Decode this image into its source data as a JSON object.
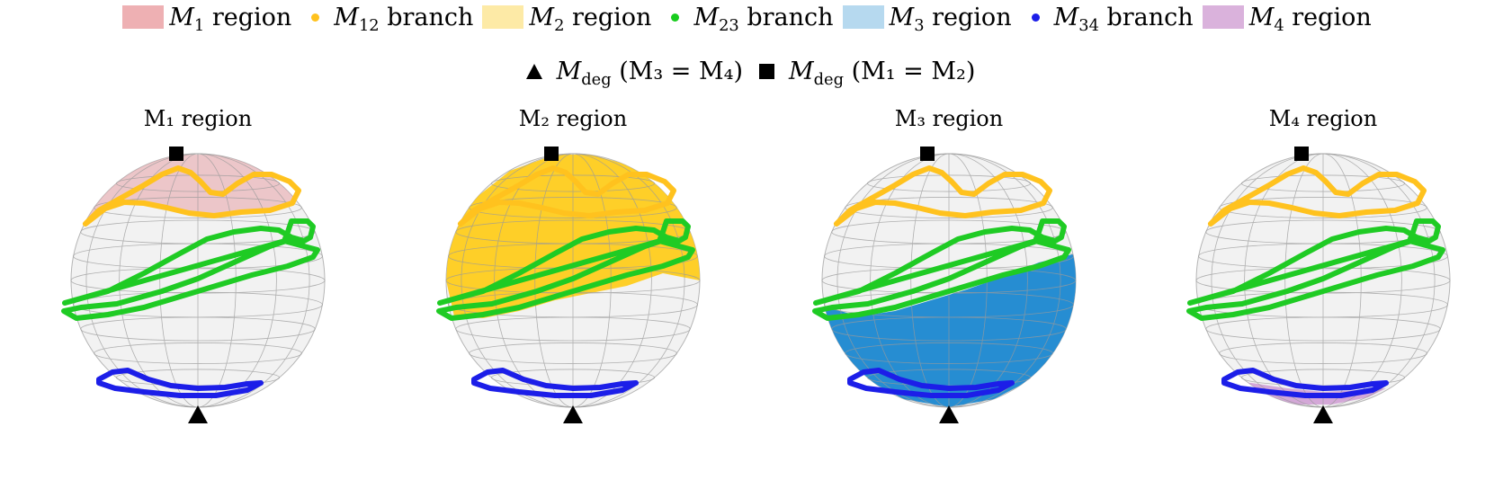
{
  "legend": {
    "row1": [
      {
        "kind": "swatch",
        "color": "#eeb0b3",
        "symbol": "M",
        "sub": "1",
        "text": " region"
      },
      {
        "kind": "dot",
        "color": "#ffc21e",
        "symbol": "M",
        "sub": "12",
        "text": " branch"
      },
      {
        "kind": "swatch",
        "color": "#fdeaa6",
        "symbol": "M",
        "sub": "2",
        "text": " region"
      },
      {
        "kind": "dot",
        "color": "#18cc1e",
        "symbol": "M",
        "sub": "23",
        "text": " branch"
      },
      {
        "kind": "swatch",
        "color": "#b6d9ef",
        "symbol": "M",
        "sub": "3",
        "text": " region"
      },
      {
        "kind": "dot",
        "color": "#1c1ee8",
        "symbol": "M",
        "sub": "34",
        "text": " branch"
      },
      {
        "kind": "swatch",
        "color": "#dab2dc",
        "symbol": "M",
        "sub": "4",
        "text": " region"
      }
    ],
    "row2": [
      {
        "marker": "triangle",
        "symbol": "M",
        "sub": "deg",
        "text": " (M₃ = M₄)"
      },
      {
        "marker": "square",
        "symbol": "M",
        "sub": "deg",
        "text": " (M₁ = M₂)"
      }
    ]
  },
  "panels": [
    {
      "title": "M₁ region",
      "region": "cap",
      "fill": "#e8a3a7",
      "opacity": 0.55
    },
    {
      "title": "M₂ region",
      "region": "upper",
      "fill": "#ffcb12",
      "opacity": 0.9
    },
    {
      "title": "M₃ region",
      "region": "lower",
      "fill": "#1a87d0",
      "opacity": 0.95
    },
    {
      "title": "M₄ region",
      "region": "bottom",
      "fill": "#c98fcf",
      "opacity": 0.75
    }
  ],
  "colors": {
    "m12": "#ffc21e",
    "m23": "#1fcb24",
    "m34": "#1c1ee8",
    "grid": "#9a9a9a",
    "sphere": "#f2f2f2"
  },
  "markers": {
    "top": "square-marker",
    "bottom": "triangle-marker"
  }
}
